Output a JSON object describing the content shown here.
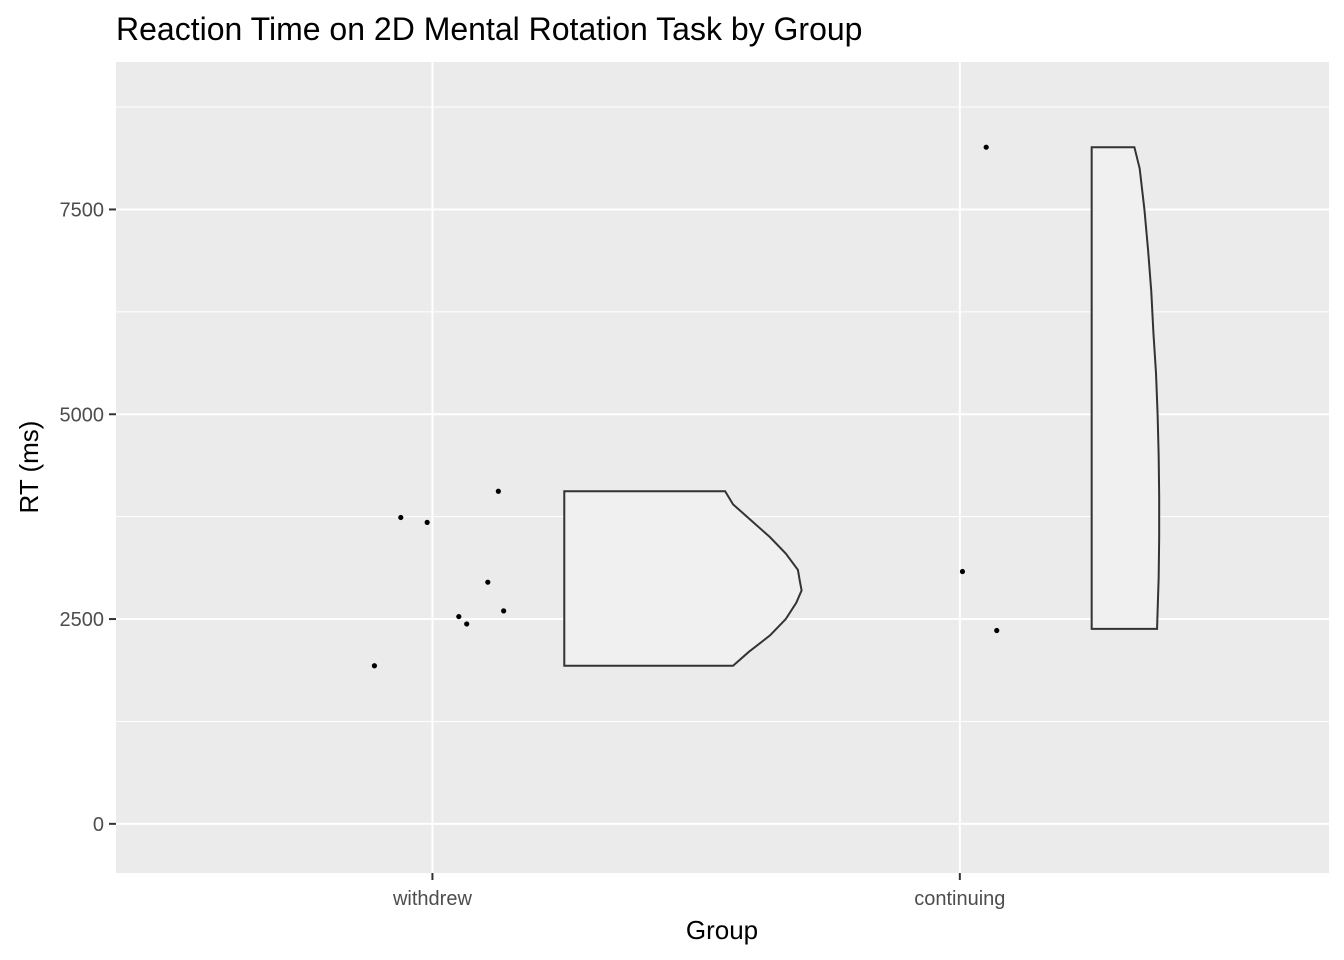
{
  "chart_data": {
    "type": "scatter",
    "title": "Reaction Time on 2D Mental Rotation Task by Group",
    "xlabel": "Group",
    "ylabel": "RT (ms)",
    "categories": [
      "withdrew",
      "continuing"
    ],
    "ylim": [
      -600,
      9300
    ],
    "y_ticks": [
      0,
      2500,
      5000,
      7500
    ],
    "y_tick_labels": [
      "0",
      "2500",
      "5000",
      "7500"
    ],
    "grid": true,
    "legend": "none",
    "colors": {
      "panel_background": "#ebebeb",
      "grid_lines": "#ffffff",
      "points": "#000000",
      "half_violin_fill": "#f0f0f0",
      "half_violin_outline": "#333333"
    },
    "series": [
      {
        "category": "withdrew",
        "points": [
          {
            "x_jitter": -0.11,
            "y": 1930
          },
          {
            "x_jitter": -0.06,
            "y": 3740
          },
          {
            "x_jitter": -0.01,
            "y": 3680
          },
          {
            "x_jitter": 0.05,
            "y": 2530
          },
          {
            "x_jitter": 0.065,
            "y": 2440
          },
          {
            "x_jitter": 0.105,
            "y": 2950
          },
          {
            "x_jitter": 0.125,
            "y": 4060
          },
          {
            "x_jitter": 0.135,
            "y": 2600
          }
        ],
        "half_violin": {
          "y_min": 1930,
          "y_max": 4060,
          "profile": [
            {
              "y": 1930,
              "w": 0.32
            },
            {
              "y": 2100,
              "w": 0.35
            },
            {
              "y": 2300,
              "w": 0.39
            },
            {
              "y": 2500,
              "w": 0.42
            },
            {
              "y": 2700,
              "w": 0.44
            },
            {
              "y": 2850,
              "w": 0.45
            },
            {
              "y": 2950,
              "w": 0.447
            },
            {
              "y": 3100,
              "w": 0.443
            },
            {
              "y": 3300,
              "w": 0.42
            },
            {
              "y": 3500,
              "w": 0.39
            },
            {
              "y": 3700,
              "w": 0.355
            },
            {
              "y": 3900,
              "w": 0.32
            },
            {
              "y": 4060,
              "w": 0.305
            }
          ]
        }
      },
      {
        "category": "continuing",
        "points": [
          {
            "x_jitter": 0.005,
            "y": 3080
          },
          {
            "x_jitter": 0.05,
            "y": 8260
          },
          {
            "x_jitter": 0.07,
            "y": 2360
          }
        ],
        "half_violin": {
          "y_min": 2380,
          "y_max": 8260,
          "profile": [
            {
              "y": 2380,
              "w": 0.124
            },
            {
              "y": 2600,
              "w": 0.125
            },
            {
              "y": 3000,
              "w": 0.127
            },
            {
              "y": 3500,
              "w": 0.128
            },
            {
              "y": 4000,
              "w": 0.128
            },
            {
              "y": 4500,
              "w": 0.127
            },
            {
              "y": 5000,
              "w": 0.125
            },
            {
              "y": 5500,
              "w": 0.122
            },
            {
              "y": 6000,
              "w": 0.117
            },
            {
              "y": 6500,
              "w": 0.113
            },
            {
              "y": 7000,
              "w": 0.107
            },
            {
              "y": 7500,
              "w": 0.1
            },
            {
              "y": 8000,
              "w": 0.091
            },
            {
              "y": 8260,
              "w": 0.081
            }
          ]
        }
      }
    ]
  }
}
